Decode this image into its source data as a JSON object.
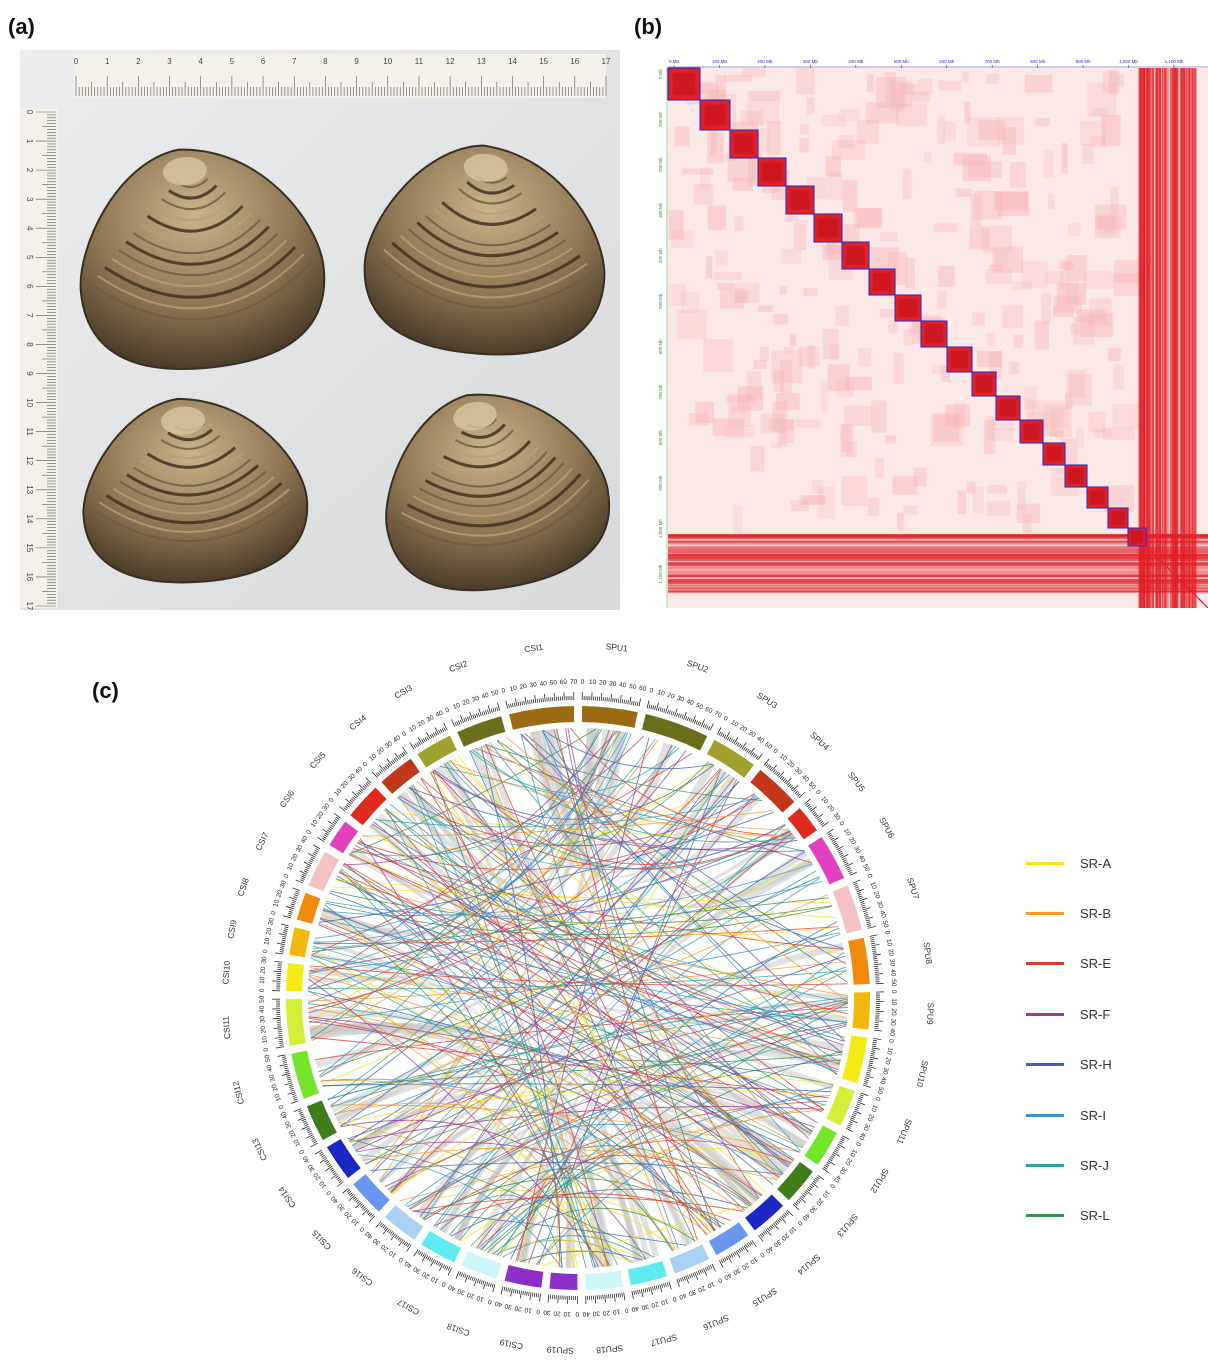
{
  "panels": {
    "a": "(a)",
    "b": "(b)",
    "c": "(c)"
  },
  "photo": {
    "ruler_top_numbers": [
      "0",
      "1",
      "2",
      "3",
      "4",
      "5",
      "6",
      "7",
      "8",
      "9",
      "10",
      "11",
      "12",
      "13",
      "14",
      "15",
      "16",
      "17"
    ],
    "ruler_left_numbers": [
      "0",
      "1",
      "2",
      "3",
      "4",
      "5",
      "6",
      "7",
      "8",
      "9",
      "10",
      "11",
      "12",
      "13",
      "14",
      "15",
      "16",
      "17"
    ]
  },
  "hic_map": {
    "top_tick_labels": [
      "0 Mb",
      "100 Mb",
      "200 Mb",
      "300 Mb",
      "400 Mb",
      "500 Mb",
      "600 Mb",
      "700 Mb",
      "800 Mb",
      "900 Mb",
      "1,000 Mb",
      "1,100 Mb"
    ],
    "left_tick_labels": [
      "0 Mb",
      "100 Mb",
      "200 Mb",
      "300 Mb",
      "400 Mb",
      "500 Mb",
      "600 Mb",
      "700 Mb",
      "800 Mb",
      "900 Mb",
      "1,000 Mb",
      "1,100 Mb"
    ],
    "block_count": 19,
    "colors": {
      "background": "#fde8e8",
      "signal": "#e21f26",
      "block_border": "#2b33c9"
    }
  },
  "circos": {
    "chromosomes": [
      {
        "name": "CSI1",
        "color": "#9c6a12",
        "size": 70
      },
      {
        "name": "CSI2",
        "color": "#6b6f1c",
        "size": 50
      },
      {
        "name": "CSI3",
        "color": "#9fa02e",
        "size": 40
      },
      {
        "name": "CSI4",
        "color": "#c2361a",
        "size": 40
      },
      {
        "name": "CSI5",
        "color": "#e02a1e",
        "size": 40
      },
      {
        "name": "CSI6",
        "color": "#e23fbd",
        "size": 30
      },
      {
        "name": "CSI7",
        "color": "#f4c2c2",
        "size": 40
      },
      {
        "name": "CSI8",
        "color": "#f08a0c",
        "size": 30
      },
      {
        "name": "CSI9",
        "color": "#f2b80c",
        "size": 30
      },
      {
        "name": "CSI10",
        "color": "#f4ea16",
        "size": 30
      },
      {
        "name": "CSI11",
        "color": "#d4ee3a",
        "size": 50
      },
      {
        "name": "CSI12",
        "color": "#72e42a",
        "size": 50
      },
      {
        "name": "CSI13",
        "color": "#3f7d1b",
        "size": 40
      },
      {
        "name": "CSI14",
        "color": "#1d28c4",
        "size": 40
      },
      {
        "name": "CSI15",
        "color": "#6b96ef",
        "size": 40
      },
      {
        "name": "CSI16",
        "color": "#aad0f2",
        "size": 40
      },
      {
        "name": "CSI17",
        "color": "#5eeaf1",
        "size": 40
      },
      {
        "name": "CSI18",
        "color": "#cdf6f8",
        "size": 40
      },
      {
        "name": "CSI19",
        "color": "#8d2ec8",
        "size": 40
      },
      {
        "name": "SPU19",
        "color": "#8d2ec8",
        "size": 30
      },
      {
        "name": "SPU18",
        "color": "#cdf6f8",
        "size": 40
      },
      {
        "name": "SPU17",
        "color": "#5eeaf1",
        "size": 40
      },
      {
        "name": "SPU16",
        "color": "#aad0f2",
        "size": 40
      },
      {
        "name": "SPU15",
        "color": "#6b96ef",
        "size": 40
      },
      {
        "name": "SPU14",
        "color": "#1d28c4",
        "size": 40
      },
      {
        "name": "SPU13",
        "color": "#3f7d1b",
        "size": 40
      },
      {
        "name": "SPU12",
        "color": "#72e42a",
        "size": 40
      },
      {
        "name": "SPU11",
        "color": "#d4ee3a",
        "size": 40
      },
      {
        "name": "SPU10",
        "color": "#f4ea16",
        "size": 50
      },
      {
        "name": "SPU9",
        "color": "#f2b80c",
        "size": 40
      },
      {
        "name": "SPU8",
        "color": "#f08a0c",
        "size": 50
      },
      {
        "name": "SPU7",
        "color": "#f4c2c2",
        "size": 50
      },
      {
        "name": "SPU6",
        "color": "#e23fbd",
        "size": 50
      },
      {
        "name": "SPU5",
        "color": "#e02a1e",
        "size": 30
      },
      {
        "name": "SPU4",
        "color": "#c2361a",
        "size": 50
      },
      {
        "name": "SPU3",
        "color": "#9fa02e",
        "size": 50
      },
      {
        "name": "SPU2",
        "color": "#6b6f1c",
        "size": 70
      },
      {
        "name": "SPU1",
        "color": "#9c6a12",
        "size": 60
      }
    ],
    "link_colors": [
      "#f6e120",
      "#f29b2a",
      "#de3a32",
      "#9a3d8e",
      "#3f64b0",
      "#3b94d3",
      "#2aa2a0",
      "#3a8c52",
      "#c9c9c9"
    ]
  },
  "legend": [
    {
      "label": "SR-A",
      "color": "#f6e120"
    },
    {
      "label": "SR-B",
      "color": "#f29b2a"
    },
    {
      "label": "SR-E",
      "color": "#de3a32"
    },
    {
      "label": "SR-F",
      "color": "#9a3d8e"
    },
    {
      "label": "SR-H",
      "color": "#3f64b0"
    },
    {
      "label": "SR-I",
      "color": "#3b94d3"
    },
    {
      "label": "SR-J",
      "color": "#2aa2a0"
    },
    {
      "label": "SR-L",
      "color": "#3a8c52"
    }
  ]
}
